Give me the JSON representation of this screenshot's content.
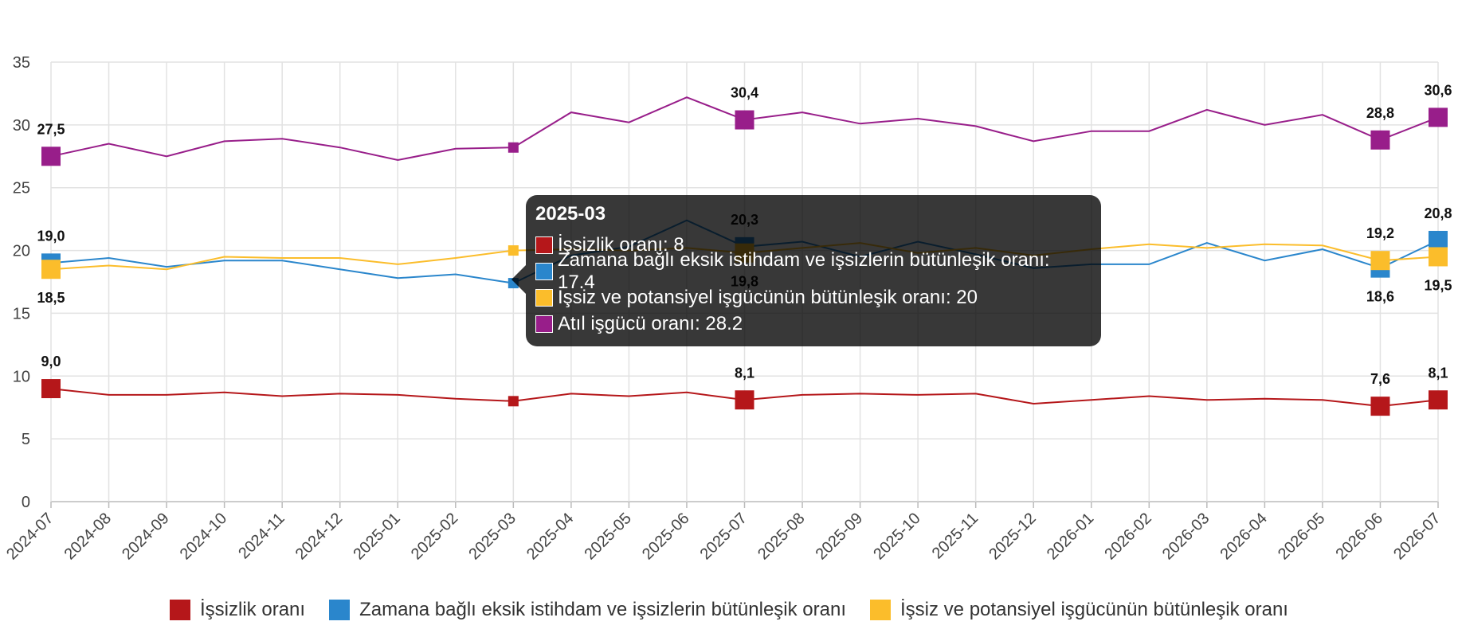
{
  "chart_data": {
    "type": "line",
    "x": [
      "2024-07",
      "2024-08",
      "2024-09",
      "2024-10",
      "2024-11",
      "2024-12",
      "2025-01",
      "2025-02",
      "2025-03",
      "2025-04",
      "2025-05",
      "2025-06",
      "2025-07",
      "2025-08",
      "2025-09",
      "2025-10",
      "2025-11",
      "2025-12",
      "2026-01",
      "2026-02",
      "2026-03",
      "2026-04",
      "2026-05",
      "2026-06",
      "2026-07"
    ],
    "ylim": [
      0,
      35
    ],
    "yticks": [
      0,
      5,
      10,
      15,
      20,
      25,
      30,
      35
    ],
    "grid": true,
    "legend_position": "bottom",
    "series": [
      {
        "name": "İşsizlik oranı",
        "color": "#b5171a",
        "values": [
          9.0,
          8.5,
          8.5,
          8.7,
          8.4,
          8.6,
          8.5,
          8.2,
          8.0,
          8.6,
          8.4,
          8.7,
          8.1,
          8.5,
          8.6,
          8.5,
          8.6,
          7.8,
          8.1,
          8.4,
          8.1,
          8.2,
          8.1,
          7.6,
          8.1
        ],
        "labels": [
          {
            "i": 0,
            "text": "9,0",
            "pos": "above"
          },
          {
            "i": 12,
            "text": "8,1",
            "pos": "above"
          },
          {
            "i": 23,
            "text": "7,6",
            "pos": "above"
          },
          {
            "i": 24,
            "text": "8,1",
            "pos": "above"
          }
        ]
      },
      {
        "name": "Zamana bağlı eksik istihdam ve işsizlerin bütünleşik oranı",
        "color": "#2a86cc",
        "values": [
          19.0,
          19.4,
          18.7,
          19.2,
          19.2,
          18.5,
          17.8,
          18.1,
          17.4,
          19.6,
          20.3,
          22.4,
          20.3,
          20.7,
          19.5,
          20.7,
          19.7,
          18.6,
          18.9,
          18.9,
          20.6,
          19.2,
          20.1,
          18.6,
          20.8
        ],
        "labels": [
          {
            "i": 0,
            "text": "19,0",
            "pos": "above"
          },
          {
            "i": 12,
            "text": "20,3",
            "pos": "above"
          },
          {
            "i": 23,
            "text": "18,6",
            "pos": "below"
          },
          {
            "i": 24,
            "text": "20,8",
            "pos": "above"
          }
        ]
      },
      {
        "name": "İşsiz ve potansiyel işgücünün bütünleşik oranı",
        "color": "#fbbd2b",
        "values": [
          18.5,
          18.8,
          18.5,
          19.5,
          19.4,
          19.4,
          18.9,
          19.4,
          20.0,
          20.1,
          20.0,
          20.2,
          19.8,
          20.2,
          20.6,
          19.8,
          20.2,
          19.6,
          20.1,
          20.5,
          20.2,
          20.5,
          20.4,
          19.2,
          19.5
        ],
        "labels": [
          {
            "i": 0,
            "text": "18,5",
            "pos": "below"
          },
          {
            "i": 12,
            "text": "19,8",
            "pos": "below"
          },
          {
            "i": 23,
            "text": "19,2",
            "pos": "above"
          },
          {
            "i": 24,
            "text": "19,5",
            "pos": "below"
          }
        ]
      },
      {
        "name": "Atıl işgücü oranı",
        "color": "#981e8a",
        "values": [
          27.5,
          28.5,
          27.5,
          28.7,
          28.9,
          28.2,
          27.2,
          28.1,
          28.2,
          31.0,
          30.2,
          32.2,
          30.4,
          31.0,
          30.1,
          30.5,
          29.9,
          28.7,
          29.5,
          29.5,
          31.2,
          30.0,
          30.8,
          28.8,
          30.6
        ],
        "labels": [
          {
            "i": 0,
            "text": "27,5",
            "pos": "above"
          },
          {
            "i": 12,
            "text": "30,4",
            "pos": "above"
          },
          {
            "i": 23,
            "text": "28,8",
            "pos": "above"
          },
          {
            "i": 24,
            "text": "30,6",
            "pos": "above"
          }
        ]
      }
    ],
    "legend": [
      "İşsizlik oranı",
      "Zamana bağlı eksik istihdam ve işsizlerin bütünleşik oranı",
      "İşsiz ve potansiyel işgücünün bütünleşik oranı"
    ],
    "tooltip": {
      "index": 8,
      "title": "2025-03",
      "rows": [
        {
          "text": "İşsizlik oranı: 8",
          "color": "#b5171a"
        },
        {
          "text": "Zamana bağlı eksik istihdam ve işsizlerin bütünleşik oranı: 17.4",
          "color": "#2a86cc"
        },
        {
          "text": "İşsiz ve potansiyel işgücünün bütünleşik oranı: 20",
          "color": "#fbbd2b"
        },
        {
          "text": "Atıl işgücü oranı: 28.2",
          "color": "#981e8a"
        }
      ]
    }
  }
}
